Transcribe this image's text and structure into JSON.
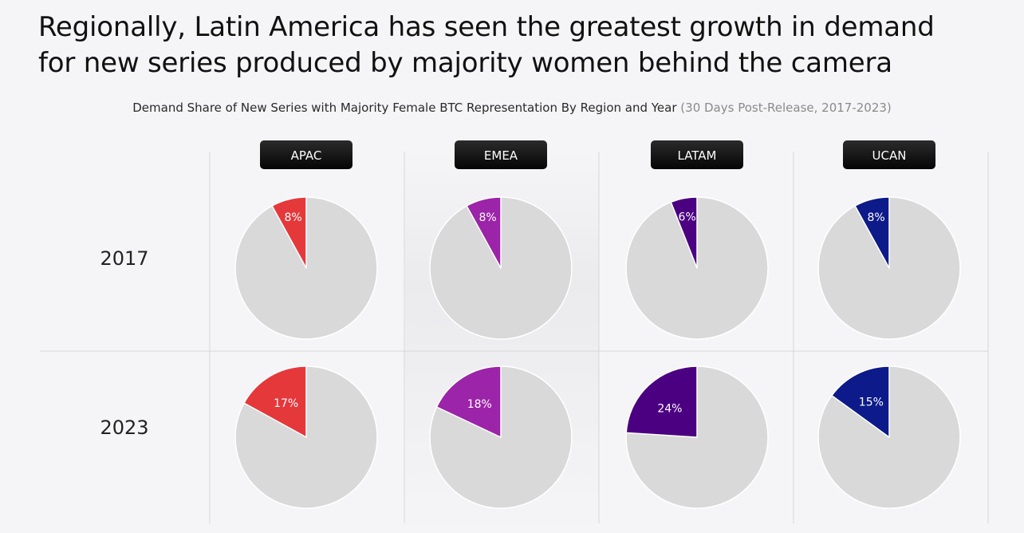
{
  "header": {
    "title_line1": "Regionally, Latin America has seen the greatest growth in demand",
    "title_line2": "for new series produced by majority women behind the camera"
  },
  "chart_data": {
    "type": "pie",
    "title": "Demand Share of New Series with Majority Female BTC Representation By Region and Year",
    "subtitle_note": "(30 Days Post-Release, 2017-2023)",
    "regions": [
      "APAC",
      "EMEA",
      "LATAM",
      "UCAN"
    ],
    "years": [
      "2017",
      "2023"
    ],
    "series": [
      {
        "name": "APAC",
        "color": "#e5383b",
        "values": [
          8,
          17
        ],
        "labels": [
          "8%",
          "17%"
        ]
      },
      {
        "name": "EMEA",
        "color": "#9b24a8",
        "values": [
          8,
          18
        ],
        "labels": [
          "8%",
          "18%"
        ]
      },
      {
        "name": "LATAM",
        "color": "#4b0082",
        "values": [
          6,
          24
        ],
        "labels": [
          "6%",
          "24%"
        ]
      },
      {
        "name": "UCAN",
        "color": "#0d1a8a",
        "values": [
          8,
          15
        ],
        "labels": [
          "8%",
          "15%"
        ]
      }
    ],
    "remainder_color": "#d9d9d9",
    "label_color": "#ffffff"
  }
}
